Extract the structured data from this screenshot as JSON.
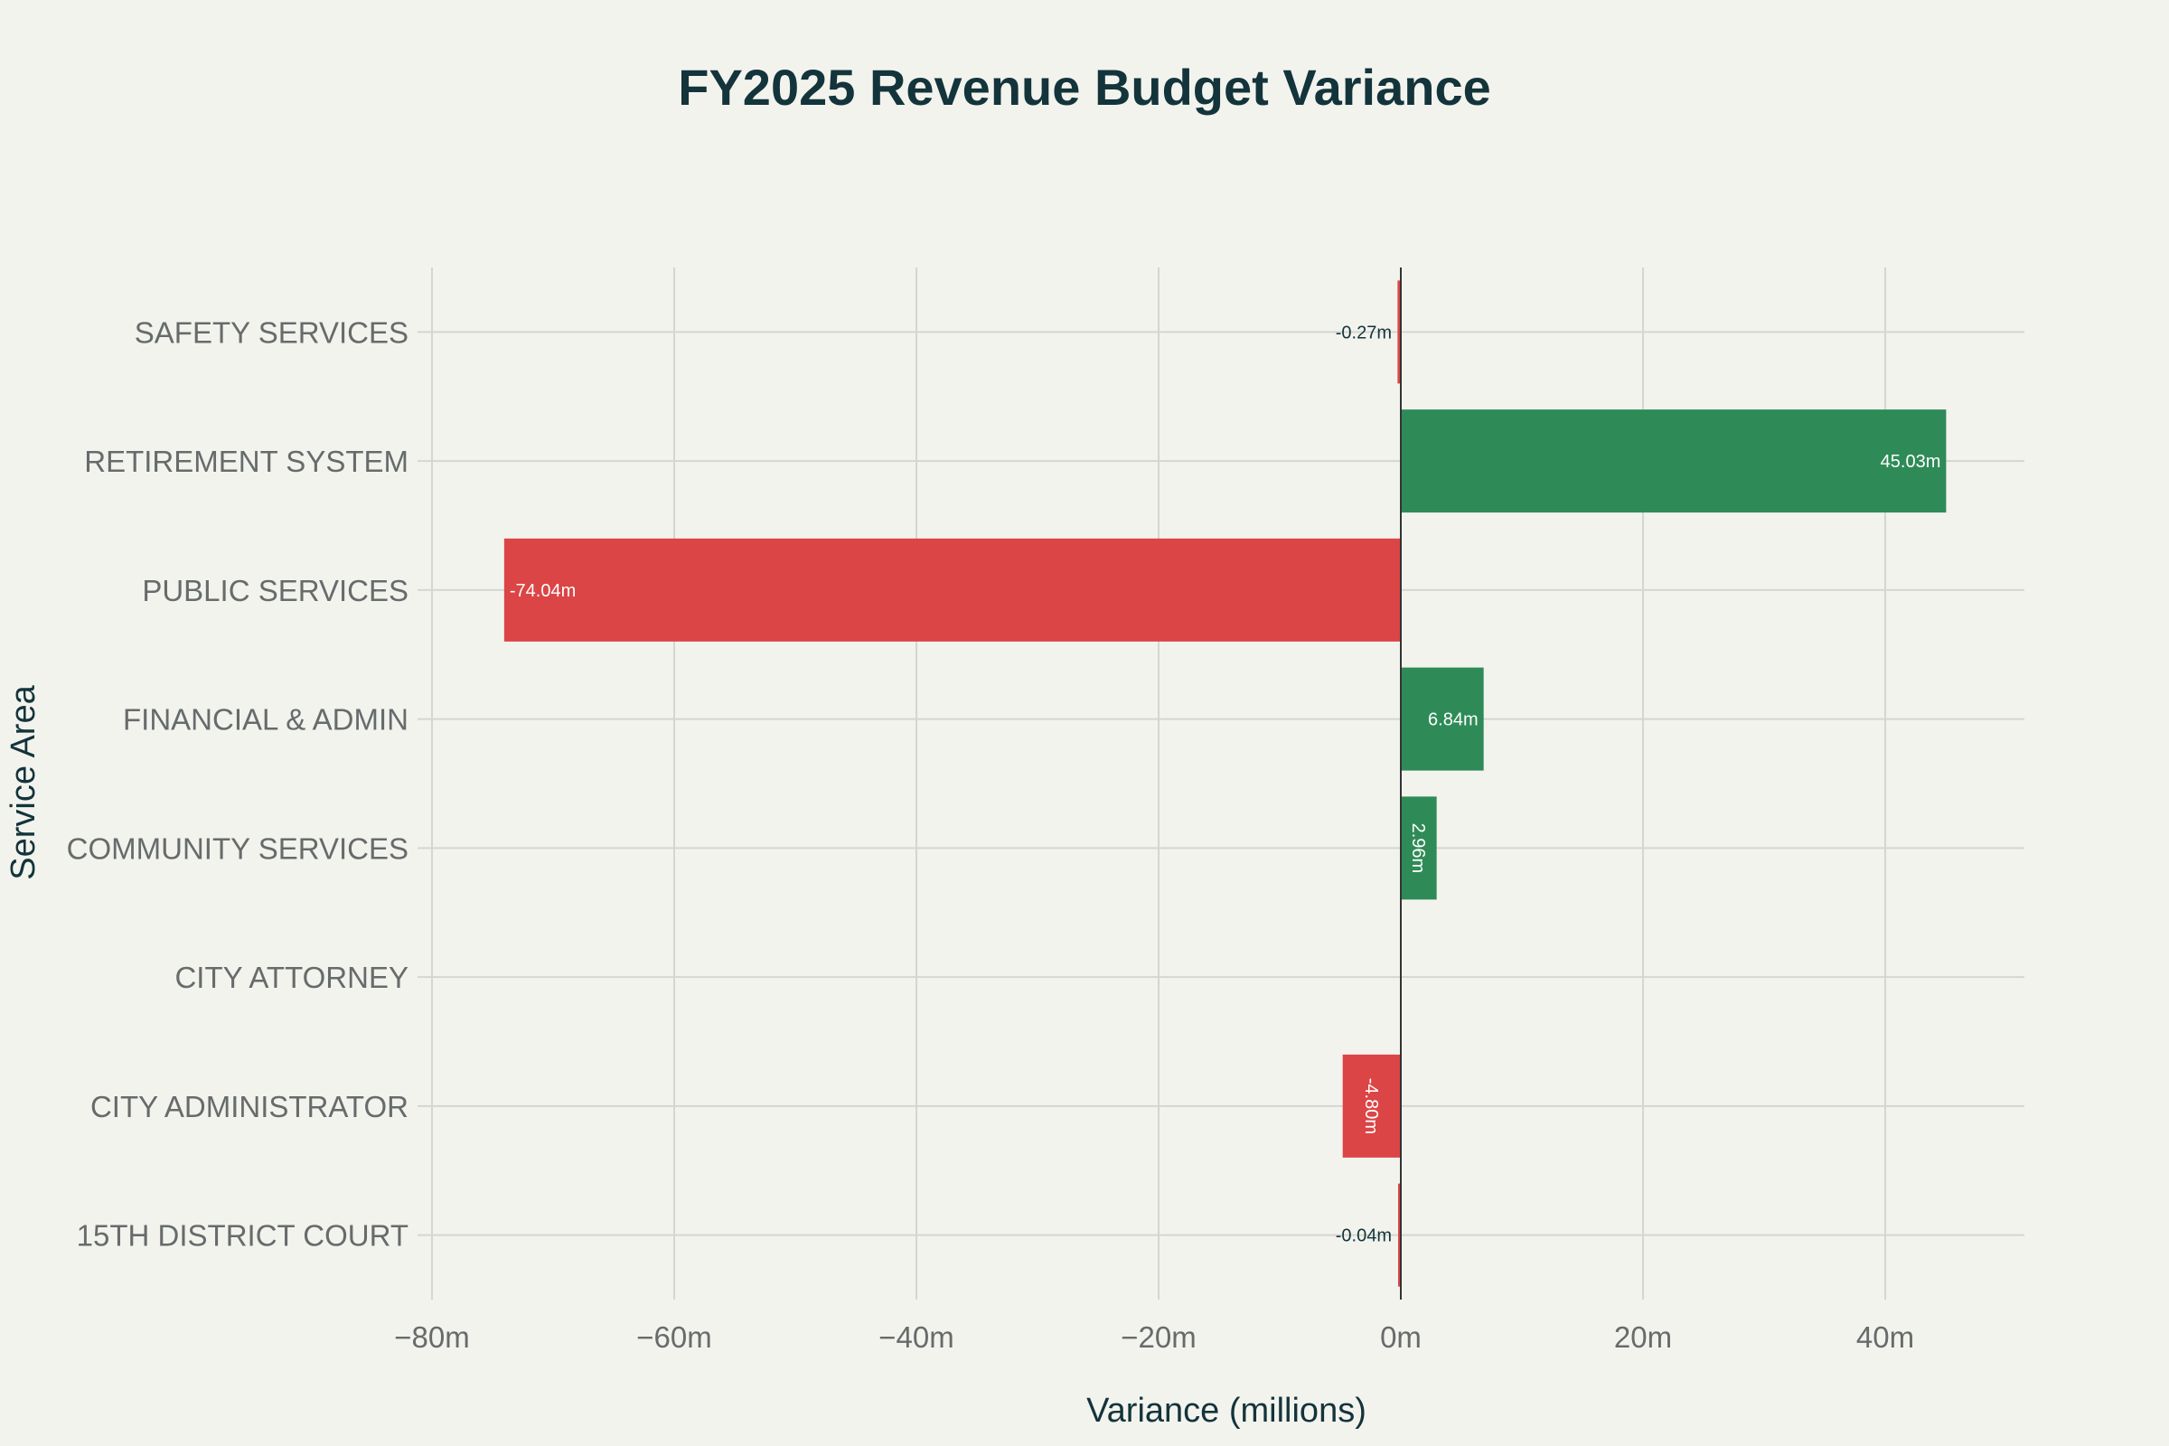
{
  "chart_data": {
    "type": "bar",
    "orientation": "horizontal",
    "title": "FY2025 Revenue Budget Variance",
    "xlabel": "Variance (millions)",
    "ylabel": "Service Area",
    "xlim": [
      -80,
      52
    ],
    "xticks": [
      {
        "value": -80,
        "label": "−80m"
      },
      {
        "value": -60,
        "label": "−60m"
      },
      {
        "value": -40,
        "label": "−40m"
      },
      {
        "value": -20,
        "label": "−20m"
      },
      {
        "value": 0,
        "label": "0m"
      },
      {
        "value": 20,
        "label": "20m"
      },
      {
        "value": 40,
        "label": "40m"
      }
    ],
    "categories": [
      "SAFETY SERVICES",
      "RETIREMENT SYSTEM",
      "PUBLIC SERVICES",
      "FINANCIAL & ADMIN",
      "COMMUNITY SERVICES",
      "CITY ATTORNEY",
      "CITY ADMINISTRATOR",
      "15TH DISTRICT COURT"
    ],
    "values": [
      -0.27,
      45.03,
      -74.04,
      6.84,
      2.96,
      0,
      -4.8,
      -0.04
    ],
    "data_labels": [
      "-0.27m",
      "45.03m",
      "-74.04m",
      "6.84m",
      "2.96m",
      "",
      "-4.80m",
      "-0.04m"
    ],
    "grid": true,
    "colors": {
      "positive": "#2e8b57",
      "negative": "#db4545",
      "background": "#f3f3ee",
      "title": "#13343b",
      "tick_text": "#666b6b",
      "grid": "#d4d6d1",
      "zero_line": "#333333"
    }
  }
}
